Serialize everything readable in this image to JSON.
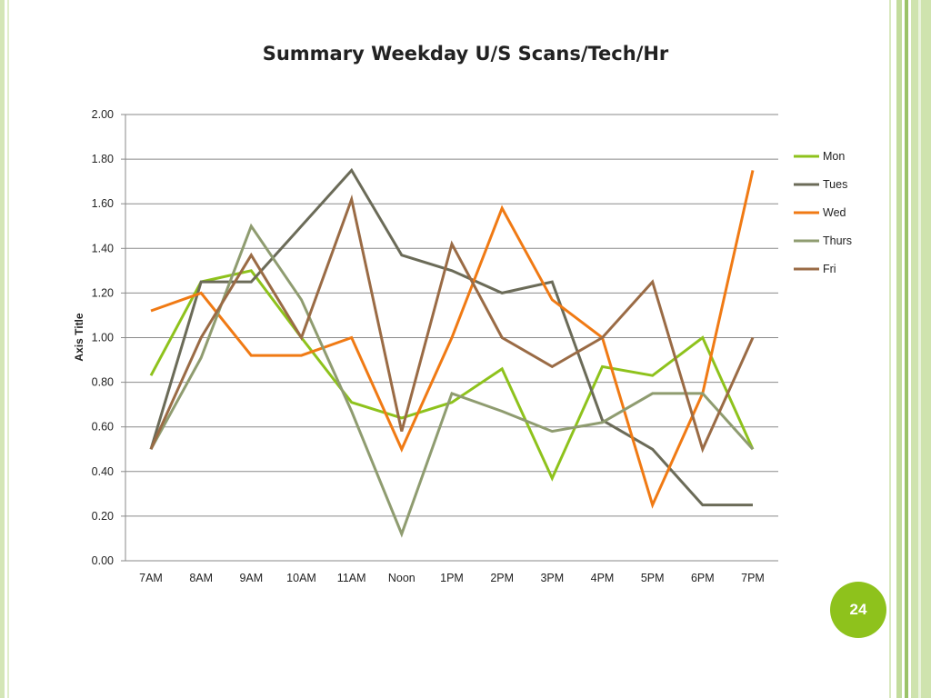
{
  "page": {
    "number": "24"
  },
  "chart_data": {
    "type": "line",
    "title": "Summary Weekday U/S Scans/Tech/Hr",
    "xlabel": "",
    "ylabel": "Axis Title",
    "ylim": [
      0,
      2
    ],
    "y_ticks": [
      "0.00",
      "0.20",
      "0.40",
      "0.60",
      "0.80",
      "1.00",
      "1.20",
      "1.40",
      "1.60",
      "1.80",
      "2.00"
    ],
    "grid": true,
    "legend_position": "right",
    "categories": [
      "7AM",
      "8AM",
      "9AM",
      "10AM",
      "11AM",
      "Noon",
      "1PM",
      "2PM",
      "3PM",
      "4PM",
      "5PM",
      "6PM",
      "7PM"
    ],
    "series": [
      {
        "name": "Mon",
        "color": "#8ec21c",
        "values": [
          0.83,
          1.25,
          1.3,
          1.0,
          0.71,
          0.64,
          0.71,
          0.86,
          0.37,
          0.87,
          0.83,
          1.0,
          0.5
        ]
      },
      {
        "name": "Tues",
        "color": "#6b6b58",
        "values": [
          0.5,
          1.25,
          1.25,
          1.5,
          1.75,
          1.37,
          1.3,
          1.2,
          1.25,
          0.63,
          0.5,
          0.25,
          0.25
        ]
      },
      {
        "name": "Wed",
        "color": "#f07a14",
        "values": [
          1.12,
          1.2,
          0.92,
          0.92,
          1.0,
          0.5,
          1.0,
          1.58,
          1.17,
          1.0,
          0.25,
          0.75,
          1.75
        ]
      },
      {
        "name": "Thurs",
        "color": "#8f9c70",
        "values": [
          0.5,
          0.91,
          1.5,
          1.17,
          0.67,
          0.12,
          0.75,
          0.67,
          0.58,
          0.62,
          0.75,
          0.75,
          0.5
        ]
      },
      {
        "name": "Fri",
        "color": "#9a6b45",
        "values": [
          0.5,
          1.0,
          1.37,
          1.0,
          1.62,
          0.58,
          1.42,
          1.0,
          0.87,
          1.0,
          1.25,
          0.5,
          1.0
        ]
      }
    ]
  }
}
